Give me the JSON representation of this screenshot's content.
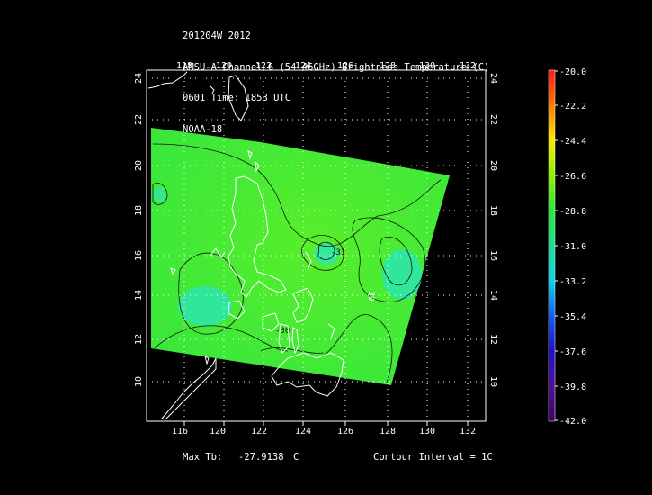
{
  "header": {
    "line1": "201204W 2012",
    "line2": "AMSU-A Channel 6 (54.46GHz) Brightness Temperature (C)",
    "line3": "0601 Time: 1853 UTC",
    "line4": "NOAA-18"
  },
  "map": {
    "lon_ticks": [
      "118",
      "120",
      "122",
      "124",
      "126",
      "128",
      "130",
      "132"
    ],
    "bottom_lon_ticks": [
      "116",
      "120",
      "122",
      "124",
      "126",
      "128",
      "130",
      "132"
    ],
    "lat_ticks": [
      "24",
      "22",
      "20",
      "18",
      "16",
      "14",
      "12",
      "10"
    ],
    "contour_labels": [
      "-30",
      "-31",
      "-30"
    ]
  },
  "colorbar": {
    "labels": [
      "-20.0",
      "-22.2",
      "-24.4",
      "-26.6",
      "-28.8",
      "-31.0",
      "-33.2",
      "-35.4",
      "-37.6",
      "-39.8",
      "-42.0"
    ]
  },
  "footer": {
    "max_tb_label": "Max Tb:",
    "max_tb_value": "-27.9138",
    "max_tb_unit": "C",
    "contour_interval": "Contour Interval = 1C"
  },
  "colors": {
    "background": "#000000",
    "field_green": "#39e83a",
    "field_cyan": "#2fe8a8",
    "coastline": "#ffffff"
  }
}
